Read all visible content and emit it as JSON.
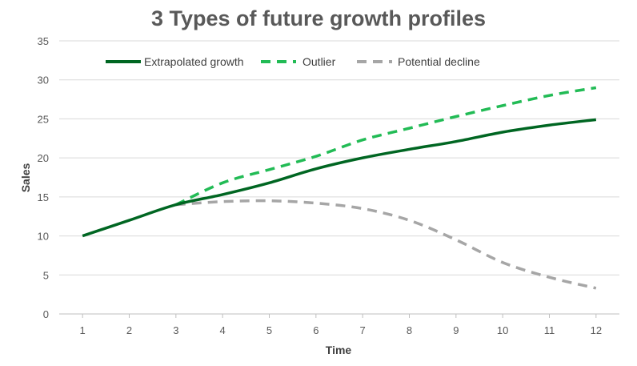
{
  "chart_data": {
    "type": "line",
    "title": "3 Types of future growth profiles",
    "xlabel": "Time",
    "ylabel": "Sales",
    "ylim": [
      0,
      35
    ],
    "yticks": [
      0,
      5,
      10,
      15,
      20,
      25,
      30,
      35
    ],
    "categories": [
      1,
      2,
      3,
      4,
      5,
      6,
      7,
      8,
      9,
      10,
      11,
      12
    ],
    "grid": true,
    "legend_position": "top",
    "series": [
      {
        "name": "Extrapolated growth",
        "style": "solid",
        "color": "#006622",
        "x": [
          1,
          2,
          3,
          4,
          5,
          6,
          7,
          8,
          9,
          10,
          11,
          12
        ],
        "values": [
          10,
          12,
          14,
          15.3,
          16.8,
          18.6,
          20,
          21.1,
          22.1,
          23.3,
          24.2,
          24.9
        ]
      },
      {
        "name": "Outlier",
        "style": "dashed",
        "color": "#22bb55",
        "x": [
          3,
          4,
          5,
          6,
          7,
          8,
          9,
          10,
          11,
          12
        ],
        "values": [
          14,
          16.8,
          18.5,
          20.2,
          22.3,
          23.8,
          25.3,
          26.7,
          28,
          29
        ]
      },
      {
        "name": "Potential decline",
        "style": "dashed",
        "color": "#a6a6a6",
        "x": [
          3,
          4,
          5,
          6,
          7,
          8,
          9,
          10,
          11,
          12
        ],
        "values": [
          14,
          14.4,
          14.5,
          14.2,
          13.5,
          12,
          9.5,
          6.6,
          4.7,
          3.3
        ]
      }
    ]
  }
}
